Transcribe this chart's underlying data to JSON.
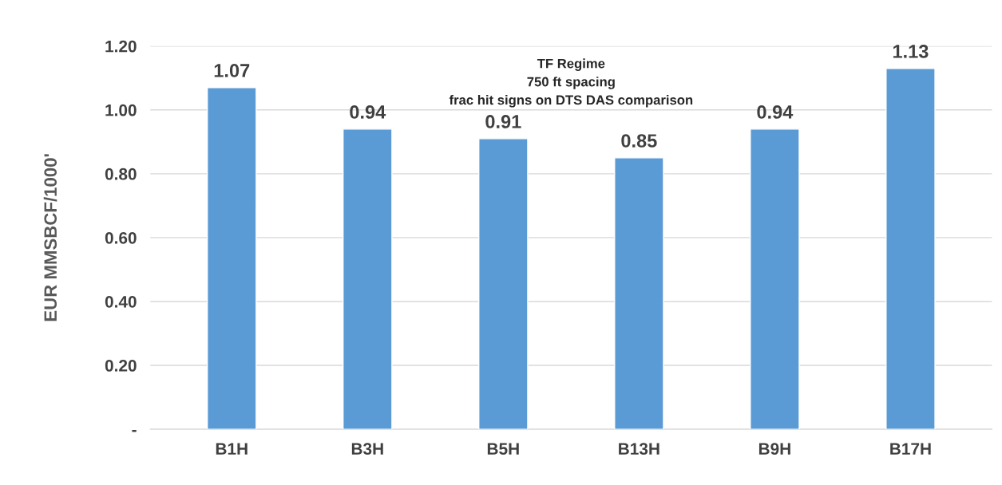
{
  "chart_data": {
    "type": "bar",
    "title": "TF Regime\n750 ft spacing\nfrac hit signs on DTS DAS comparison",
    "ylabel": "EUR MMSBCF/1000'",
    "categories": [
      "B1H",
      "B3H",
      "B5H",
      "B13H",
      "B9H",
      "B17H"
    ],
    "values": [
      1.07,
      0.94,
      0.91,
      0.85,
      0.94,
      1.13
    ],
    "color": "#5b9bd5",
    "ylim": [
      0,
      1.2
    ],
    "yticks": [
      {
        "value": 0,
        "label": "-"
      },
      {
        "value": 0.2,
        "label": "0.20"
      },
      {
        "value": 0.4,
        "label": "0.40"
      },
      {
        "value": 0.6,
        "label": "0.60"
      },
      {
        "value": 0.8,
        "label": "0.80"
      },
      {
        "value": 1.0,
        "label": "1.00"
      },
      {
        "value": 1.2,
        "label": "1.20"
      }
    ],
    "grid": "y",
    "data_labels": true
  }
}
